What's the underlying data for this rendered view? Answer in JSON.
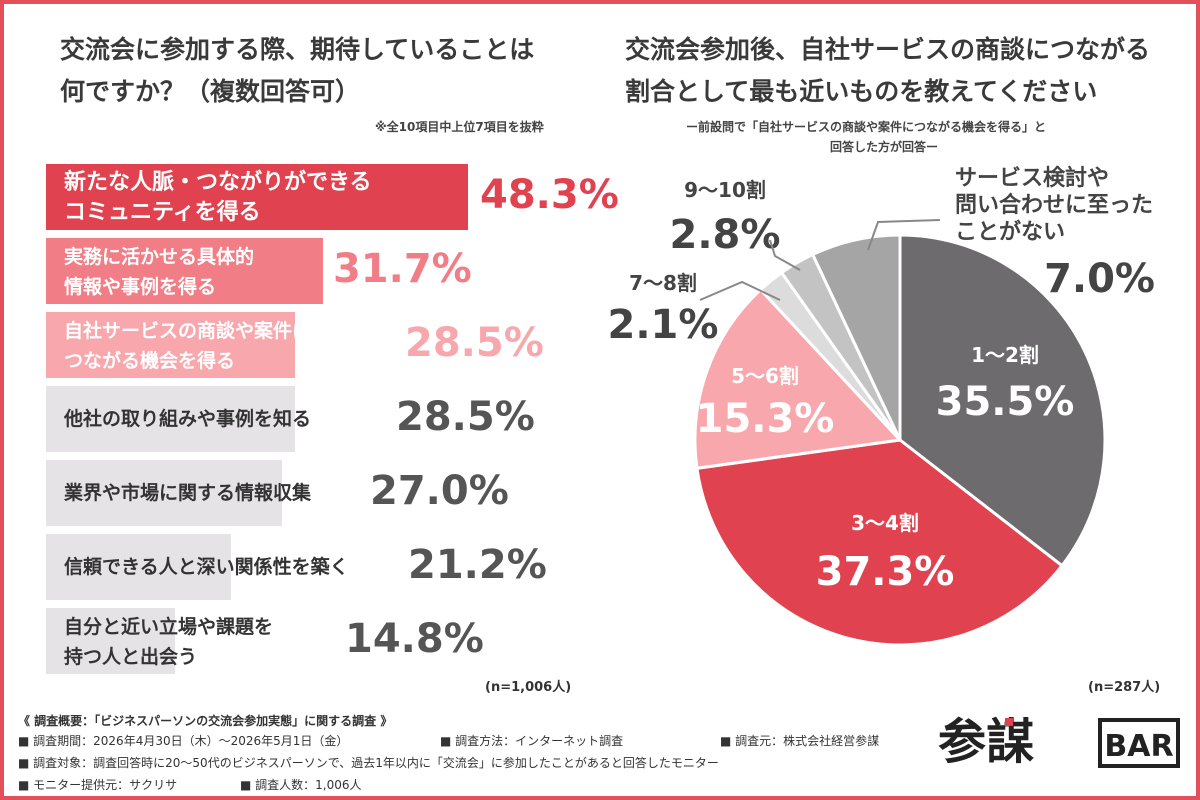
{
  "left_chart": {
    "title_line1": "交流会に参加する際、期待していることは",
    "title_line2": "何ですか？（複数回答可）",
    "note": "※全10項目中上位7項目を抜粋",
    "n_label": "(n=1,006人)"
  },
  "right_chart": {
    "title_line1": "交流会参加後、自社サービスの商談につながる",
    "title_line2": "割合として最も近いものを教えてください",
    "subtitle_line1": "ー前設問で「自社サービスの商談や案件につながる機会を得る」と",
    "subtitle_line2": "回答した方が回答ー",
    "n_label": "(n=287人)"
  },
  "chart_data": [
    {
      "type": "bar",
      "orientation": "horizontal",
      "categories": [
        [
          "新たな人脈・つながりができる",
          "コミュニティを得る"
        ],
        [
          "実務に活かせる具体的",
          "情報や事例を得る"
        ],
        [
          "自社サービスの商談や案件に",
          "つながる機会を得る"
        ],
        [
          "他社の取り組みや事例を知る"
        ],
        [
          "業界や市場に関する情報収集"
        ],
        [
          "信頼できる人と深い関係性を築く"
        ],
        [
          "自分と近い立場や課題を",
          "持つ人と出会う"
        ]
      ],
      "values": [
        48.3,
        31.7,
        28.5,
        28.5,
        27.0,
        21.2,
        14.8
      ],
      "value_labels": [
        "48.3%",
        "31.7%",
        "28.5%",
        "28.5%",
        "27.0%",
        "21.2%",
        "14.8%"
      ],
      "xlim": [
        0,
        60
      ],
      "colors": [
        "#e0434f",
        "#f17e86",
        "#f8a7ad",
        "#e6e3e6",
        "#e6e3e6",
        "#e6e3e6",
        "#e6e3e6"
      ],
      "label_colors": [
        "#ffffff",
        "#ffffff",
        "#ffffff",
        "#333333",
        "#333333",
        "#333333",
        "#333333"
      ],
      "value_colors": [
        "#e0434f",
        "#f17e86",
        "#f8a7ad",
        "#555555",
        "#555555",
        "#555555",
        "#555555"
      ]
    },
    {
      "type": "pie",
      "slices": [
        {
          "label": "1〜2割",
          "value": 35.5,
          "value_label": "35.5%",
          "color": "#6d6b6d"
        },
        {
          "label": "3〜4割",
          "value": 37.3,
          "value_label": "37.3%",
          "color": "#e0434f"
        },
        {
          "label": "5〜6割",
          "value": 15.3,
          "value_label": "15.3%",
          "color": "#f8a7ad"
        },
        {
          "label": "7〜8割",
          "value": 2.1,
          "value_label": "2.1%",
          "color": "#dcdcdc"
        },
        {
          "label": "9〜10割",
          "value": 2.8,
          "value_label": "2.8%",
          "color": "#c3c3c3"
        },
        {
          "label": [
            "サービス検討や",
            "問い合わせに至った",
            "ことがない"
          ],
          "value": 7.0,
          "value_label": "7.0%",
          "color": "#a5a5a5"
        }
      ]
    }
  ],
  "footer": {
    "line1": "《 調査概要：「ビジネスパーソンの交流会参加実態」に関する調査 》",
    "line2a": "■ 調査期間：2026年4月30日（木）〜2026年5月1日（金）",
    "line2b": "■ 調査方法：インターネット調査",
    "line2c": "■ 調査元：株式会社経営参謀",
    "line3": "■ 調査対象：調査回答時に20〜50代のビジネスパーソンで、過去1年以内に「交流会」に参加したことがあると回答したモニター",
    "line4a": "■ モニター提供元：サクリサ",
    "line4b": "■ 調査人数：1,006人"
  },
  "logo": {
    "kanji": "参謀",
    "bar": "BAR"
  }
}
